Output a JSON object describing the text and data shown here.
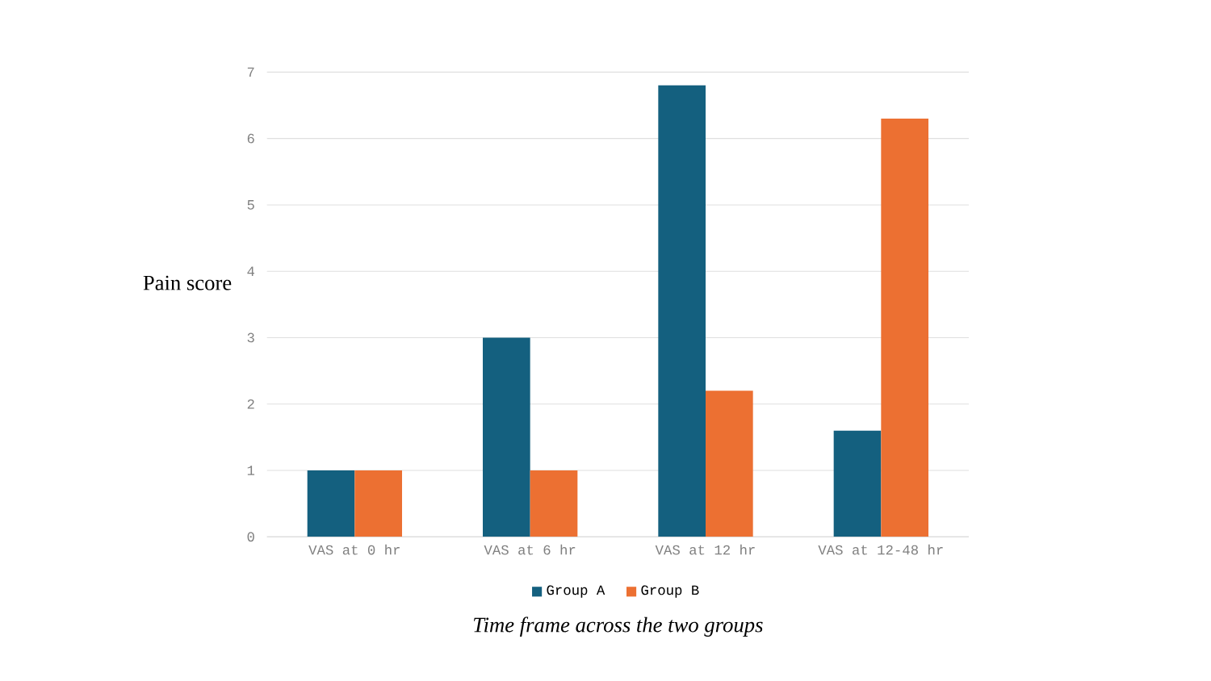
{
  "chart_data": {
    "type": "bar",
    "xlabel": "Time frame across the two groups",
    "ylabel": "Pain score",
    "categories": [
      "VAS at 0 hr",
      "VAS at 6 hr",
      "VAS at 12 hr",
      "VAS at 12-48 hr"
    ],
    "series": [
      {
        "name": "Group A",
        "color": "#14607f",
        "values": [
          1,
          3,
          6.8,
          1.6
        ]
      },
      {
        "name": "Group B",
        "color": "#ec7032",
        "values": [
          1,
          1,
          2.2,
          6.3
        ]
      }
    ],
    "ylim": [
      0,
      7
    ],
    "yticks": [
      0,
      1,
      2,
      3,
      4,
      5,
      6,
      7
    ],
    "grid": "y",
    "legend": "bottom"
  }
}
